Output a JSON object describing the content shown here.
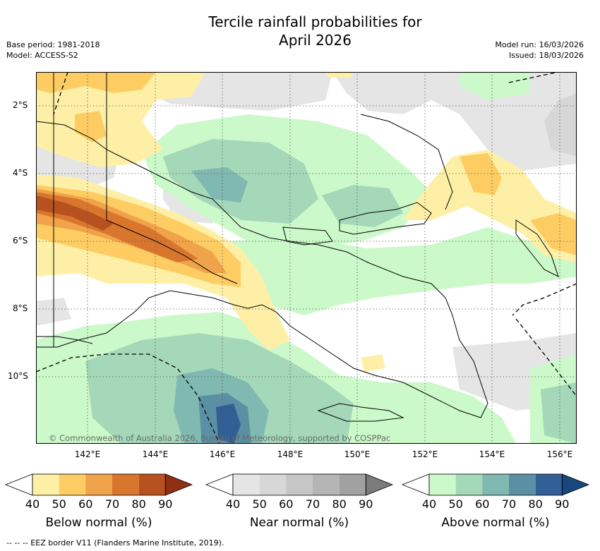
{
  "title": {
    "line1": "Tercile rainfall probabilities for",
    "line2": "April 2026"
  },
  "meta": {
    "base_period": "Base period: 1981-2018",
    "model": "Model: ACCESS-S2",
    "model_run": "Model run: 16/03/2026",
    "issued": "Issued: 18/03/2026"
  },
  "axes": {
    "lat_labels": [
      "2°S",
      "4°S",
      "6°S",
      "8°S",
      "10°S"
    ],
    "lon_labels": [
      "142°E",
      "144°E",
      "146°E",
      "148°E",
      "150°E",
      "152°E",
      "154°E",
      "156°E"
    ]
  },
  "copyright": "© Commonwealth of Australia 2026, Bureau of Meteorology, supported by COSPPac",
  "colorbars": {
    "ticks": [
      "40",
      "50",
      "60",
      "70",
      "80",
      "90"
    ],
    "below": {
      "title": "Below normal (%)",
      "colors": [
        "#fdf0a6",
        "#fdcd64",
        "#f0a34a",
        "#d9762e",
        "#b7511f",
        "#8f2f14"
      ]
    },
    "near": {
      "title": "Near normal (%)",
      "colors": [
        "#e5e5e5",
        "#d7d7d7",
        "#c6c6c6",
        "#b5b5b5",
        "#a1a1a1",
        "#7b7b7b"
      ]
    },
    "above": {
      "title": "Above normal (%)",
      "colors": [
        "#cbf9c9",
        "#a4d8b9",
        "#80b9b1",
        "#5b90a4",
        "#325f95",
        "#17477d"
      ]
    }
  },
  "footnote": "-- -- -- EEZ border V11 (Flanders Marine Institute, 2019)."
}
